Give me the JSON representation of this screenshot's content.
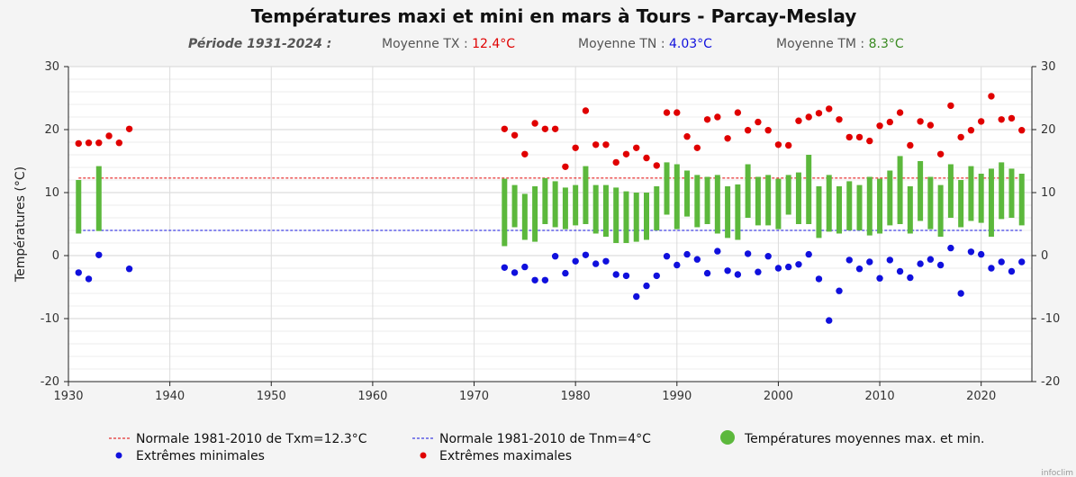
{
  "chart_data": {
    "type": "scatter",
    "title": "Températures maxi et mini en mars à Tours - Parcay-Meslay",
    "subtitle": {
      "period": "Période 1931-2024 :",
      "tx_label": "Moyenne TX : ",
      "tx_value": "12.4°C",
      "tn_label": "Moyenne TN : ",
      "tn_value": "4.03°C",
      "tm_label": "Moyenne TM : ",
      "tm_value": "8.3°C"
    },
    "ylabel": "Températures (°C)",
    "xlim": [
      1930,
      2025
    ],
    "ylim": [
      -20,
      30
    ],
    "x_ticks": [
      "1930",
      "1940",
      "1950",
      "1960",
      "1970",
      "1980",
      "1990",
      "2000",
      "2010",
      "2020"
    ],
    "y_ticks": [
      "-20",
      "-10",
      "0",
      "10",
      "20",
      "30"
    ],
    "grid": true,
    "normal_tx": 12.3,
    "normal_tn": 4,
    "legend": {
      "normal_tx": "Normale 1981-2010 de Txm=12.3°C",
      "normal_tn": "Normale 1981-2010 de Tnm=4°C",
      "bars": "Températures moyennes max. et min.",
      "min": "Extrêmes minimales",
      "max": "Extrêmes maximales"
    },
    "colors": {
      "bar": "#5cb83c",
      "max": "#e00000",
      "min": "#1010dd",
      "normal_tx": "#e00000",
      "normal_tn": "#1010dd",
      "tx_text": "#e00000",
      "tn_text": "#1010dd",
      "tm_text": "#3a8a22"
    },
    "years": [
      1931,
      1932,
      1933,
      1934,
      1935,
      1936,
      1973,
      1974,
      1975,
      1976,
      1977,
      1978,
      1979,
      1980,
      1981,
      1982,
      1983,
      1984,
      1985,
      1986,
      1987,
      1988,
      1989,
      1990,
      1991,
      1992,
      1993,
      1994,
      1995,
      1996,
      1997,
      1998,
      1999,
      2000,
      2001,
      2002,
      2003,
      2004,
      2005,
      2006,
      2007,
      2008,
      2009,
      2010,
      2011,
      2012,
      2013,
      2014,
      2015,
      2016,
      2017,
      2018,
      2019,
      2020,
      2021,
      2022,
      2023,
      2024
    ],
    "bar_tx": [
      12,
      null,
      14.2,
      null,
      null,
      null,
      12.2,
      11.2,
      9.8,
      11,
      12.3,
      11.8,
      10.8,
      11.2,
      14.2,
      11.2,
      11.2,
      10.8,
      10.2,
      10,
      10,
      11,
      14.8,
      14.5,
      13.5,
      12.8,
      12.5,
      12.8,
      11,
      11.3,
      14.5,
      12.5,
      12.8,
      12.2,
      12.8,
      13.2,
      16,
      11,
      12.8,
      11,
      11.8,
      11.2,
      12.5,
      12.2,
      13.5,
      15.8,
      11,
      15,
      12.5,
      11.2,
      14.5,
      12,
      14.2,
      13,
      13.8,
      14.8,
      13.8,
      13
    ],
    "bar_tn": [
      3.5,
      null,
      3.9,
      null,
      null,
      null,
      1.5,
      4.5,
      2.5,
      2.2,
      5,
      4.5,
      4.2,
      4.8,
      5,
      3.5,
      3,
      2,
      2,
      2.2,
      2.5,
      4,
      6.5,
      4.2,
      6.2,
      4.5,
      5,
      3.5,
      2.8,
      2.5,
      6,
      4.8,
      4.8,
      4.2,
      6.5,
      5,
      5,
      2.8,
      3.8,
      3.5,
      4,
      4,
      3.2,
      3.5,
      4.8,
      5,
      3.5,
      5.5,
      4.2,
      3,
      6,
      4.5,
      5.5,
      5.2,
      3,
      5.8,
      6,
      4.8
    ],
    "tmax": [
      17.8,
      17.9,
      17.9,
      19,
      17.9,
      20.1,
      20.1,
      19.1,
      16.1,
      21,
      20.1,
      20.1,
      14.1,
      17.1,
      23,
      17.6,
      17.6,
      14.8,
      16.1,
      17.1,
      15.5,
      14.3,
      22.7,
      22.7,
      18.9,
      17.1,
      21.6,
      22,
      18.6,
      22.7,
      19.9,
      21.2,
      19.9,
      17.6,
      17.5,
      21.4,
      22,
      22.6,
      23.3,
      21.6,
      18.8,
      18.8,
      18.2,
      20.6,
      21.2,
      22.7,
      17.5,
      21.3,
      20.7,
      16.1,
      23.8,
      18.8,
      19.9,
      21.3,
      25.3,
      21.6,
      21.8,
      19.9
    ],
    "tmin": [
      -2.7,
      -3.7,
      0.1,
      null,
      null,
      -2.1,
      -1.9,
      -2.7,
      -1.8,
      -3.9,
      -3.9,
      -0.1,
      -2.8,
      -0.9,
      0.1,
      -1.3,
      -0.9,
      -3,
      -3.2,
      -6.5,
      -4.8,
      -3.2,
      -0.1,
      -1.5,
      0.2,
      -0.6,
      -2.8,
      0.7,
      -2.4,
      -3,
      0.3,
      -2.6,
      -0.1,
      -2,
      -1.8,
      -1.4,
      0.2,
      -3.7,
      -10.3,
      -5.6,
      -0.7,
      -2.1,
      -1,
      -3.6,
      -0.7,
      -2.5,
      -3.5,
      -1.3,
      -0.6,
      -1.5,
      1.2,
      -6,
      0.6,
      0.2,
      -2,
      -1,
      -2.5,
      -1
    ]
  },
  "credit": "infoclim"
}
